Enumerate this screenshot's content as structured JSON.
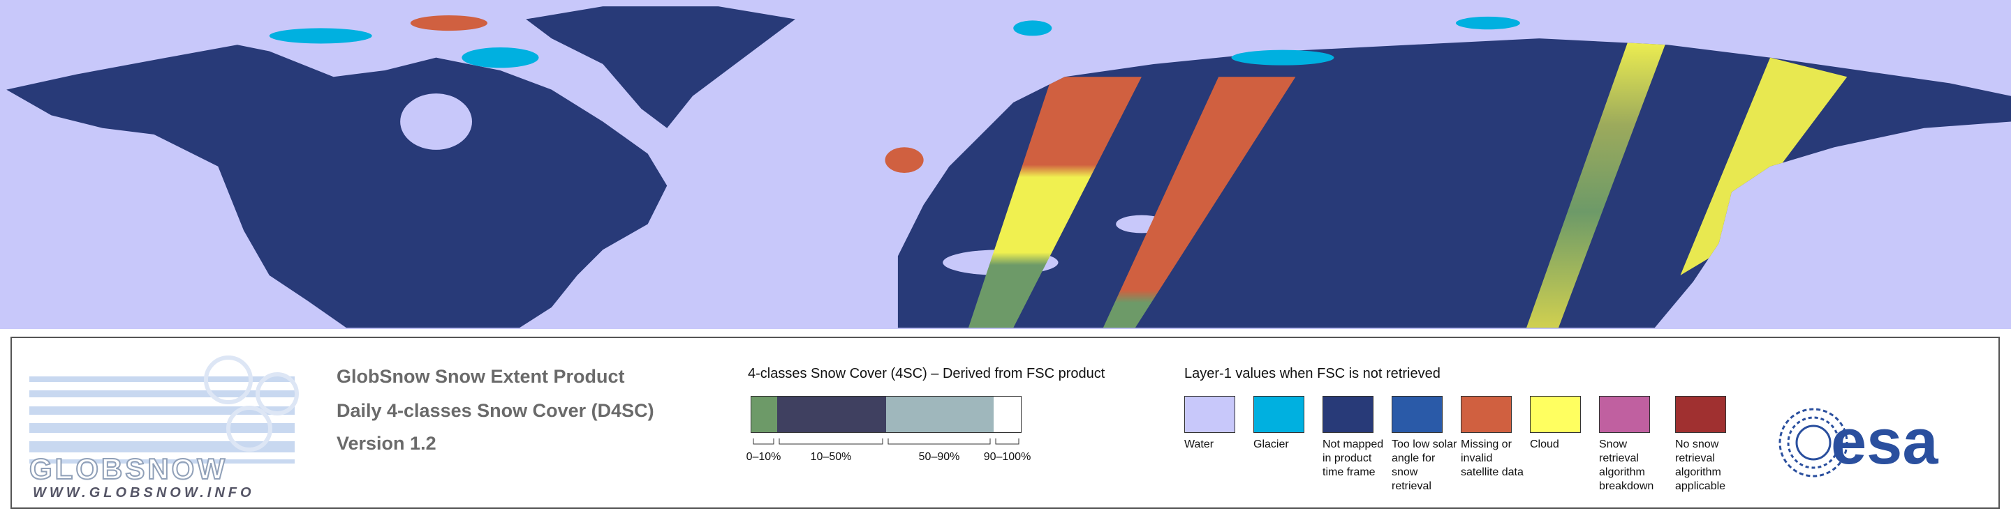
{
  "header": {
    "title": "GlobSnow Snow Extent Product",
    "subtitle": "Daily 4-classes Snow Cover (D4SC)",
    "version": "Version 1.2"
  },
  "logo": {
    "name": "GLOBSNOW",
    "url": "WWW.GLOBSNOW.INFO"
  },
  "snow_cover_legend": {
    "title": "4-classes Snow Cover (4SC) – Derived from FSC product",
    "classes": [
      {
        "label": "0–10%",
        "color": "#6d9a68"
      },
      {
        "label": "10–50%",
        "color": "#3f4060"
      },
      {
        "label": "50–90%",
        "color": "#9fb7bc"
      },
      {
        "label": "90–100%",
        "color": "#ffffff"
      }
    ]
  },
  "layer1_legend": {
    "title": "Layer-1 values when FSC is not retrieved",
    "items": [
      {
        "label": "Water",
        "color": "#c8c8fa"
      },
      {
        "label": "Glacier",
        "color": "#00b0e0"
      },
      {
        "label": "Not mapped in product time frame",
        "color": "#283a78"
      },
      {
        "label": "Too low solar angle for snow retrieval",
        "color": "#2a5aa8"
      },
      {
        "label": "Missing or invalid satellite data",
        "color": "#d06040"
      },
      {
        "label": "Cloud",
        "color": "#ffff60"
      },
      {
        "label": "Snow retrieval algorithm breakdown",
        "color": "#c060a0"
      },
      {
        "label": "No snow retrieval algorithm applicable",
        "color": "#a03030"
      }
    ]
  },
  "agency_logo": "esa"
}
